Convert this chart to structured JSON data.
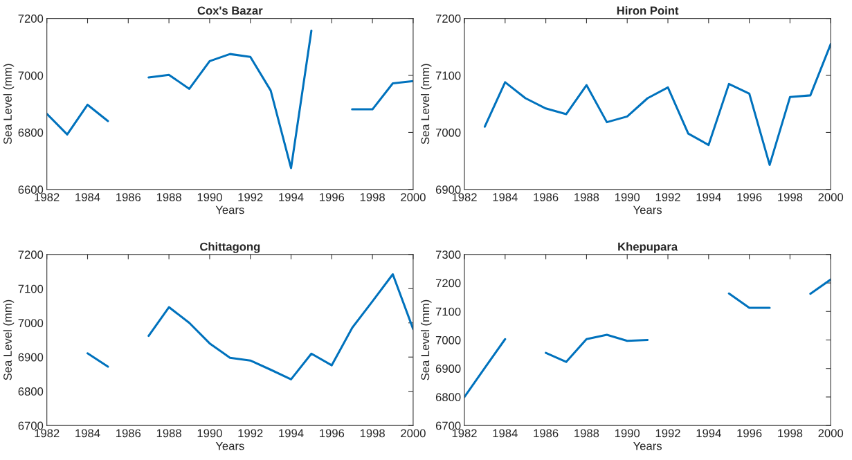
{
  "chart_data": [
    {
      "type": "line",
      "title": "Cox's Bazar",
      "xlabel": "Years",
      "ylabel": "Sea Level (mm)",
      "x": [
        1982,
        1983,
        1984,
        1985,
        1986,
        1987,
        1988,
        1989,
        1990,
        1991,
        1992,
        1993,
        1994,
        1995,
        1996,
        1997,
        1998,
        1999,
        2000
      ],
      "series": [
        {
          "color": "#0072bd",
          "values": [
            6865,
            6793,
            6897,
            6840,
            null,
            6993,
            7002,
            6953,
            7050,
            7075,
            7065,
            6947,
            6675,
            7157,
            null,
            6881,
            6881,
            6972,
            6980
          ]
        }
      ],
      "xlim": [
        1982,
        2000
      ],
      "xticks": [
        1982,
        1984,
        1986,
        1988,
        1990,
        1992,
        1994,
        1996,
        1998,
        2000
      ],
      "ylim": [
        6600,
        7200
      ],
      "yticks": [
        6600,
        6800,
        7000,
        7200
      ],
      "grid": false,
      "legend": false
    },
    {
      "type": "line",
      "title": "Hiron Point",
      "xlabel": "Years",
      "ylabel": "Sea Level (mm)",
      "x": [
        1983,
        1984,
        1985,
        1986,
        1987,
        1988,
        1989,
        1990,
        1991,
        1992,
        1993,
        1994,
        1995,
        1996,
        1997,
        1998,
        1999,
        2000
      ],
      "series": [
        {
          "color": "#0072bd",
          "values": [
            7010,
            7088,
            7060,
            7042,
            7032,
            7083,
            7018,
            7028,
            7060,
            7079,
            6998,
            6978,
            7085,
            7068,
            6943,
            7062,
            7065,
            7155
          ]
        }
      ],
      "xlim": [
        1982,
        2000
      ],
      "xticks": [
        1982,
        1984,
        1986,
        1988,
        1990,
        1992,
        1994,
        1996,
        1998,
        2000
      ],
      "ylim": [
        6900,
        7200
      ],
      "yticks": [
        6900,
        7000,
        7100,
        7200
      ],
      "grid": false,
      "legend": false
    },
    {
      "type": "line",
      "title": "Chittagong",
      "xlabel": "Years",
      "ylabel": "Sea Level (mm)",
      "x": [
        1984,
        1985,
        1986,
        1987,
        1988,
        1989,
        1990,
        1991,
        1992,
        1993,
        1994,
        1995,
        1996,
        1997,
        1998,
        1999,
        2000
      ],
      "series": [
        {
          "color": "#0072bd",
          "values": [
            6911,
            6872,
            null,
            6962,
            7046,
            7000,
            6940,
            6898,
            6890,
            6863,
            6835,
            6910,
            6876,
            6985,
            7063,
            7142,
            6982
          ]
        }
      ],
      "xlim": [
        1982,
        2000
      ],
      "xticks": [
        1982,
        1984,
        1986,
        1988,
        1990,
        1992,
        1994,
        1996,
        1998,
        2000
      ],
      "ylim": [
        6700,
        7200
      ],
      "yticks": [
        6700,
        6800,
        6900,
        7000,
        7100,
        7200
      ],
      "grid": false,
      "legend": false
    },
    {
      "type": "line",
      "title": "Khepupara",
      "xlabel": "Years",
      "ylabel": "Sea Level (mm)",
      "x": [
        1982,
        1983,
        1984,
        1985,
        1986,
        1987,
        1988,
        1989,
        1990,
        1991,
        1992,
        1993,
        1994,
        1995,
        1996,
        1997,
        1998,
        1999,
        2000
      ],
      "series": [
        {
          "color": "#0072bd",
          "values": [
            6800,
            6902,
            7003,
            null,
            6955,
            6923,
            7003,
            7018,
            6997,
            7000,
            null,
            null,
            null,
            7163,
            7113,
            7113,
            null,
            7162,
            7212
          ]
        }
      ],
      "xlim": [
        1982,
        2000
      ],
      "xticks": [
        1982,
        1984,
        1986,
        1988,
        1990,
        1992,
        1994,
        1996,
        1998,
        2000
      ],
      "ylim": [
        6700,
        7300
      ],
      "yticks": [
        6700,
        6800,
        6900,
        7000,
        7100,
        7200,
        7300
      ],
      "grid": false,
      "legend": false
    }
  ]
}
